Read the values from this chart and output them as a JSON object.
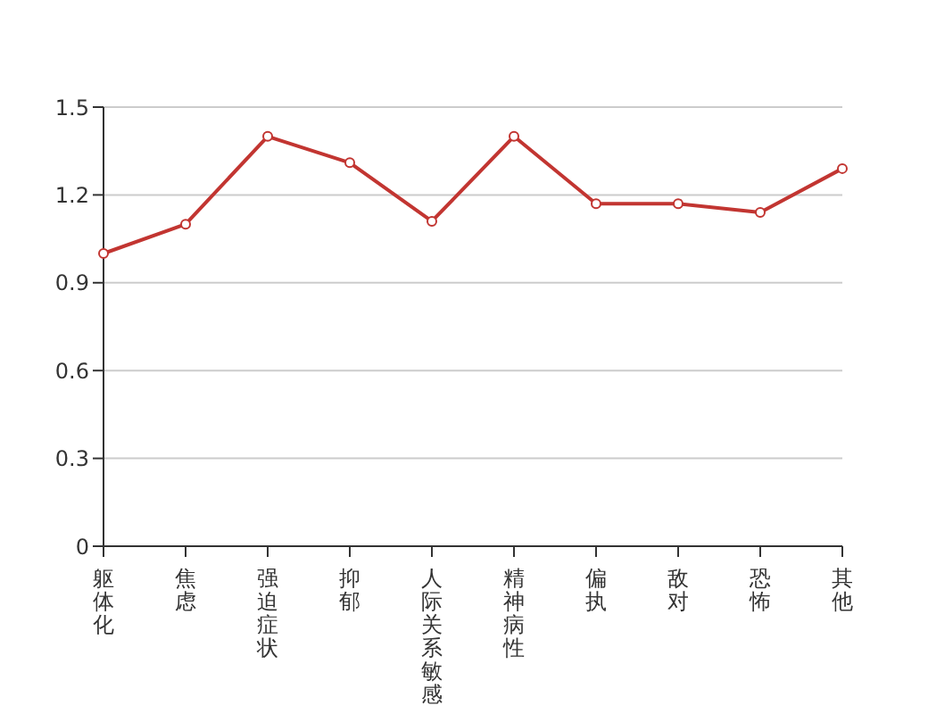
{
  "chart_data": {
    "type": "line",
    "categories": [
      "躯体化",
      "焦虑",
      "强迫症状",
      "抑郁",
      "人际关系敏感",
      "精神病性",
      "偏执",
      "敌对",
      "恐怖",
      "其他"
    ],
    "series": [
      {
        "color": "#c23531",
        "values": [
          1.0,
          1.1,
          1.4,
          1.31,
          1.11,
          1.4,
          1.17,
          1.17,
          1.14,
          1.29
        ]
      }
    ],
    "ylim": [
      0,
      1.5
    ],
    "yticks": [
      0,
      0.3,
      0.6,
      0.9,
      1.2,
      1.5
    ],
    "grid": "y",
    "marker": "circle",
    "line_style": "solid",
    "legend": false
  }
}
